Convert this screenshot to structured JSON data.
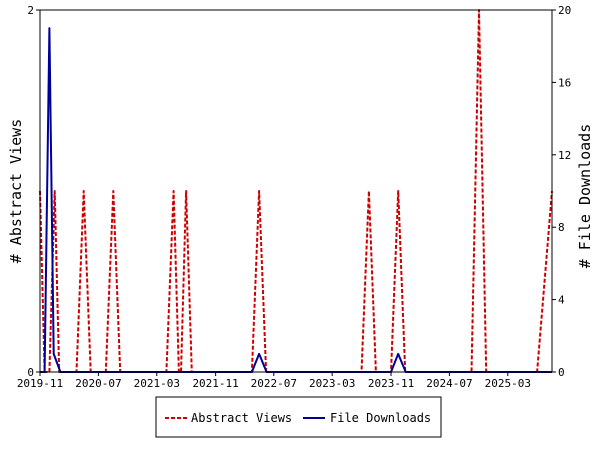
{
  "chart_data": {
    "type": "line",
    "title": "",
    "xlabel": "",
    "ylabel_left": "# Abstract Views",
    "ylabel_right": "# File Downloads",
    "ylim_left": [
      0,
      2
    ],
    "ylim_right": [
      0,
      20
    ],
    "yticks_left": [
      0,
      2
    ],
    "yticks_right": [
      0,
      4,
      8,
      12,
      16,
      20
    ],
    "xlim": [
      "2019-11-01",
      "2025-09-01"
    ],
    "xtick_labels": [
      "2019-11",
      "2020-07",
      "2021-03",
      "2021-11",
      "2022-07",
      "2023-03",
      "2023-11",
      "2024-07",
      "2025-03"
    ],
    "grid": false,
    "legend_position": "bottom",
    "series": [
      {
        "name": "Abstract Views",
        "axis": "left",
        "color": "#cc0000",
        "style": "dashed",
        "points": [
          [
            "2019-11-01",
            1
          ],
          [
            "2019-11-20",
            0
          ],
          [
            "2019-12-10",
            0
          ],
          [
            "2020-01-01",
            1
          ],
          [
            "2020-01-20",
            0
          ],
          [
            "2020-04-01",
            0
          ],
          [
            "2020-05-01",
            1
          ],
          [
            "2020-05-30",
            0
          ],
          [
            "2020-08-01",
            0
          ],
          [
            "2020-09-01",
            1
          ],
          [
            "2020-09-30",
            0
          ],
          [
            "2021-04-10",
            0
          ],
          [
            "2021-05-10",
            1
          ],
          [
            "2021-06-01",
            0
          ],
          [
            "2021-06-10",
            0
          ],
          [
            "2021-07-01",
            1
          ],
          [
            "2021-07-25",
            0
          ],
          [
            "2022-04-01",
            0
          ],
          [
            "2022-05-01",
            1
          ],
          [
            "2022-05-30",
            0
          ],
          [
            "2023-07-01",
            0
          ],
          [
            "2023-08-01",
            1
          ],
          [
            "2023-08-30",
            0
          ],
          [
            "2023-11-01",
            0
          ],
          [
            "2023-12-01",
            1
          ],
          [
            "2023-12-30",
            0
          ],
          [
            "2024-10-01",
            0
          ],
          [
            "2024-11-01",
            2
          ],
          [
            "2024-12-01",
            0
          ],
          [
            "2025-07-01",
            0
          ],
          [
            "2025-09-01",
            1
          ]
        ]
      },
      {
        "name": "File Downloads",
        "axis": "right",
        "color": "#000099",
        "style": "solid",
        "points": [
          [
            "2019-11-01",
            0
          ],
          [
            "2019-11-20",
            0
          ],
          [
            "2019-12-10",
            19
          ],
          [
            "2019-12-28",
            1
          ],
          [
            "2020-01-25",
            0
          ],
          [
            "2022-04-01",
            0
          ],
          [
            "2022-05-01",
            1
          ],
          [
            "2022-06-01",
            0
          ],
          [
            "2023-11-01",
            0
          ],
          [
            "2023-12-01",
            1
          ],
          [
            "2024-01-01",
            0
          ],
          [
            "2025-09-01",
            0
          ]
        ]
      }
    ]
  }
}
